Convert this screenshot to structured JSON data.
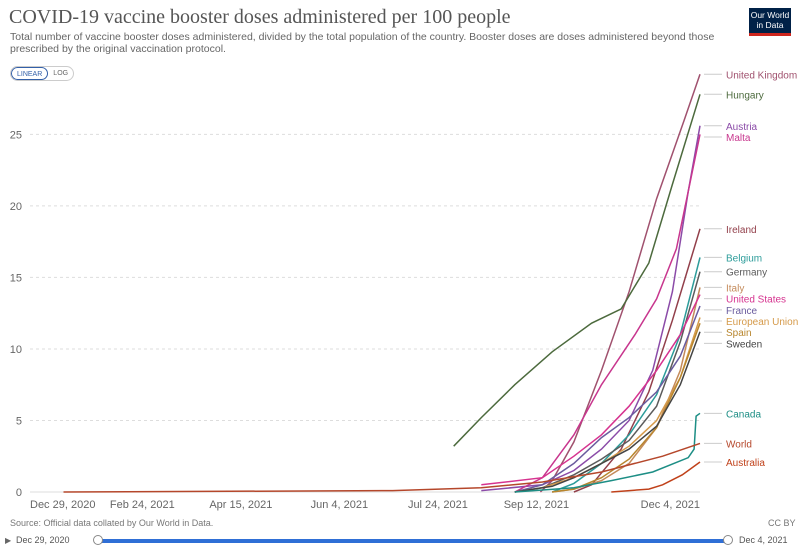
{
  "header": {
    "title": "COVID-19 vaccine booster doses administered per 100 people",
    "subtitle": "Total number of vaccine booster doses administered, divided by the total population of the country. Booster doses are doses administered beyond those prescribed by the original vaccination protocol.",
    "logo_line1": "Our World",
    "logo_line2": "in Data"
  },
  "controls": {
    "linear_label": "LINEAR",
    "log_label": "LOG",
    "play_icon": "play-icon"
  },
  "footer": {
    "source": "Source: Official data collated by Our World in Data.",
    "license": "CC BY",
    "timeline_start": "Dec 29, 2020",
    "timeline_end": "Dec 4, 2021"
  },
  "chart_data": {
    "type": "line",
    "y_ticks": [
      0,
      5,
      10,
      15,
      20,
      25
    ],
    "ylim": [
      0,
      28.8
    ],
    "xlim": [
      "2020-12-29",
      "2021-12-04"
    ],
    "x_ticks": [
      {
        "date": "2020-12-29",
        "label": "Dec 29, 2020"
      },
      {
        "date": "2021-02-24",
        "label": "Feb 24, 2021"
      },
      {
        "date": "2021-04-15",
        "label": "Apr 15, 2021"
      },
      {
        "date": "2021-06-04",
        "label": "Jun 4, 2021"
      },
      {
        "date": "2021-07-24",
        "label": "Jul 24, 2021"
      },
      {
        "date": "2021-09-12",
        "label": "Sep 12, 2021"
      },
      {
        "date": "2021-12-04",
        "label": "Dec 4, 2021"
      }
    ],
    "grid": true,
    "series": [
      {
        "name": "United Kingdom",
        "color": "#a0516e",
        "points": [
          [
            "2021-09-14",
            0
          ],
          [
            "2021-09-20",
            0.8
          ],
          [
            "2021-10-01",
            3.5
          ],
          [
            "2021-10-15",
            8.5
          ],
          [
            "2021-10-29",
            14
          ],
          [
            "2021-11-12",
            20.5
          ],
          [
            "2021-11-26",
            26
          ],
          [
            "2021-12-04",
            29.2
          ]
        ]
      },
      {
        "name": "Hungary",
        "color": "#4c6a3d",
        "points": [
          [
            "2021-08-01",
            3.2
          ],
          [
            "2021-08-15",
            5.2
          ],
          [
            "2021-09-01",
            7.5
          ],
          [
            "2021-09-20",
            9.8
          ],
          [
            "2021-10-10",
            11.8
          ],
          [
            "2021-10-25",
            12.8
          ],
          [
            "2021-11-08",
            16
          ],
          [
            "2021-11-20",
            21.5
          ],
          [
            "2021-12-04",
            27.8
          ]
        ]
      },
      {
        "name": "Austria",
        "color": "#8b4ba8",
        "points": [
          [
            "2021-08-15",
            0.1
          ],
          [
            "2021-09-15",
            0.5
          ],
          [
            "2021-10-01",
            1.5
          ],
          [
            "2021-10-15",
            3
          ],
          [
            "2021-10-29",
            5
          ],
          [
            "2021-11-10",
            8.5
          ],
          [
            "2021-11-20",
            14
          ],
          [
            "2021-11-28",
            21
          ],
          [
            "2021-12-04",
            25.6
          ]
        ]
      },
      {
        "name": "Malta",
        "color": "#c8368e",
        "points": [
          [
            "2021-09-01",
            0
          ],
          [
            "2021-09-15",
            1
          ],
          [
            "2021-10-01",
            4
          ],
          [
            "2021-10-15",
            7.5
          ],
          [
            "2021-11-01",
            11
          ],
          [
            "2021-11-12",
            13.5
          ],
          [
            "2021-11-22",
            17
          ],
          [
            "2021-12-04",
            25
          ]
        ]
      },
      {
        "name": "Ireland",
        "color": "#923f4a",
        "points": [
          [
            "2021-10-01",
            0
          ],
          [
            "2021-10-10",
            0.5
          ],
          [
            "2021-10-25",
            3
          ],
          [
            "2021-11-08",
            7
          ],
          [
            "2021-11-20",
            12
          ],
          [
            "2021-12-04",
            18.4
          ]
        ]
      },
      {
        "name": "Belgium",
        "color": "#2c9c9a",
        "points": [
          [
            "2021-09-20",
            0
          ],
          [
            "2021-10-01",
            0.6
          ],
          [
            "2021-10-15",
            2
          ],
          [
            "2021-10-29",
            4
          ],
          [
            "2021-11-12",
            6.8
          ],
          [
            "2021-11-24",
            11
          ],
          [
            "2021-12-04",
            16.4
          ]
        ]
      },
      {
        "name": "Germany",
        "color": "#5b5b5b",
        "points": [
          [
            "2021-09-01",
            0
          ],
          [
            "2021-09-15",
            0.3
          ],
          [
            "2021-10-01",
            1.2
          ],
          [
            "2021-10-15",
            2.3
          ],
          [
            "2021-10-29",
            3.6
          ],
          [
            "2021-11-12",
            6
          ],
          [
            "2021-11-24",
            10.5
          ],
          [
            "2021-12-04",
            15.4
          ]
        ]
      },
      {
        "name": "Italy",
        "color": "#c48a5a",
        "points": [
          [
            "2021-09-20",
            0
          ],
          [
            "2021-10-01",
            0.2
          ],
          [
            "2021-10-15",
            0.8
          ],
          [
            "2021-10-29",
            2
          ],
          [
            "2021-11-12",
            4.5
          ],
          [
            "2021-11-24",
            8.5
          ],
          [
            "2021-12-04",
            14.3
          ]
        ]
      },
      {
        "name": "United States",
        "color": "#d6338f",
        "points": [
          [
            "2021-08-15",
            0.5
          ],
          [
            "2021-09-15",
            1
          ],
          [
            "2021-10-01",
            2.5
          ],
          [
            "2021-10-15",
            4
          ],
          [
            "2021-10-29",
            6
          ],
          [
            "2021-11-12",
            8.5
          ],
          [
            "2021-11-24",
            11
          ],
          [
            "2021-12-04",
            13.8
          ]
        ]
      },
      {
        "name": "France",
        "color": "#6a5c9e",
        "points": [
          [
            "2021-09-01",
            0
          ],
          [
            "2021-09-15",
            0.5
          ],
          [
            "2021-10-01",
            2
          ],
          [
            "2021-10-15",
            3.8
          ],
          [
            "2021-10-29",
            5.2
          ],
          [
            "2021-11-12",
            7
          ],
          [
            "2021-11-24",
            9.5
          ],
          [
            "2021-12-04",
            13
          ]
        ]
      },
      {
        "name": "European Union",
        "color": "#d59a4a",
        "points": [
          [
            "2021-09-01",
            0
          ],
          [
            "2021-09-15",
            0.3
          ],
          [
            "2021-10-01",
            1
          ],
          [
            "2021-10-15",
            2
          ],
          [
            "2021-10-29",
            3.2
          ],
          [
            "2021-11-12",
            5
          ],
          [
            "2021-11-24",
            8
          ],
          [
            "2021-12-04",
            12.2
          ]
        ]
      },
      {
        "name": "Spain",
        "color": "#b8862e",
        "points": [
          [
            "2021-09-20",
            0
          ],
          [
            "2021-10-01",
            0.2
          ],
          [
            "2021-10-15",
            1
          ],
          [
            "2021-10-29",
            2.3
          ],
          [
            "2021-11-12",
            4.5
          ],
          [
            "2021-11-24",
            8
          ],
          [
            "2021-12-04",
            11.8
          ]
        ]
      },
      {
        "name": "Sweden",
        "color": "#444444",
        "points": [
          [
            "2021-09-01",
            0
          ],
          [
            "2021-09-20",
            0.4
          ],
          [
            "2021-10-01",
            1
          ],
          [
            "2021-10-15",
            2
          ],
          [
            "2021-10-29",
            3
          ],
          [
            "2021-11-12",
            4.6
          ],
          [
            "2021-11-24",
            7.5
          ],
          [
            "2021-12-04",
            11.2
          ]
        ]
      },
      {
        "name": "Canada",
        "color": "#1d8e85",
        "points": [
          [
            "2021-09-01",
            0
          ],
          [
            "2021-10-01",
            0.3
          ],
          [
            "2021-10-20",
            0.8
          ],
          [
            "2021-11-10",
            1.4
          ],
          [
            "2021-11-28",
            2.4
          ],
          [
            "2021-12-01",
            3
          ],
          [
            "2021-12-02",
            5.3
          ],
          [
            "2021-12-04",
            5.5
          ]
        ]
      },
      {
        "name": "World",
        "color": "#b5472b",
        "points": [
          [
            "2021-01-15",
            0
          ],
          [
            "2021-07-01",
            0.1
          ],
          [
            "2021-08-15",
            0.3
          ],
          [
            "2021-09-15",
            0.7
          ],
          [
            "2021-10-15",
            1.4
          ],
          [
            "2021-11-15",
            2.5
          ],
          [
            "2021-12-04",
            3.4
          ]
        ]
      },
      {
        "name": "Australia",
        "color": "#c0411a",
        "points": [
          [
            "2021-10-20",
            0
          ],
          [
            "2021-11-08",
            0.2
          ],
          [
            "2021-11-15",
            0.5
          ],
          [
            "2021-11-25",
            1.2
          ],
          [
            "2021-12-04",
            2.1
          ]
        ]
      }
    ],
    "labels": [
      {
        "series": "United Kingdom",
        "text": "United Kingdom"
      },
      {
        "series": "Hungary",
        "text": "Hungary"
      },
      {
        "series": "Austria",
        "text": "Austria"
      },
      {
        "series": "Malta",
        "text": "Malta"
      },
      {
        "series": "Ireland",
        "text": "Ireland"
      },
      {
        "series": "Belgium",
        "text": "Belgium"
      },
      {
        "series": "Germany",
        "text": "Germany"
      },
      {
        "series": "Italy",
        "text": "Italy"
      },
      {
        "series": "United States",
        "text": "United States"
      },
      {
        "series": "France",
        "text": "France"
      },
      {
        "series": "European Union",
        "text": "European Union"
      },
      {
        "series": "Spain",
        "text": "Spain"
      },
      {
        "series": "Sweden",
        "text": "Sweden"
      },
      {
        "series": "Canada",
        "text": "Canada"
      },
      {
        "series": "World",
        "text": "World"
      },
      {
        "series": "Australia",
        "text": "Australia"
      }
    ]
  }
}
